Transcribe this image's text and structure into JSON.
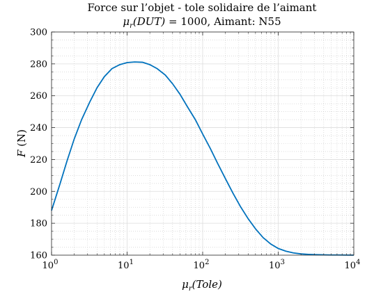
{
  "chart_data": {
    "type": "line",
    "title_line1": "Force sur l’objet - tole solidaire de l’aimant",
    "title_line2_var": "μ",
    "title_line2_sub": "r",
    "title_line2_arg": "(DUT)",
    "title_line2_rest": " = 1000, Aimant: N55",
    "xlabel_var": "μ",
    "xlabel_sub": "r",
    "xlabel_arg": "(Tole)",
    "ylabel_var": "F",
    "ylabel_unit": " (N)",
    "xscale": "log",
    "xlim": [
      1,
      10000
    ],
    "ylim": [
      160,
      300
    ],
    "grid": true,
    "minor_grid": true,
    "line_color": "#0072BD",
    "xticks": [
      {
        "value": 1,
        "base": "10",
        "exp": "0"
      },
      {
        "value": 10,
        "base": "10",
        "exp": "1"
      },
      {
        "value": 100,
        "base": "10",
        "exp": "2"
      },
      {
        "value": 1000,
        "base": "10",
        "exp": "3"
      },
      {
        "value": 10000,
        "base": "10",
        "exp": "4"
      }
    ],
    "yticks": [
      "160",
      "180",
      "200",
      "220",
      "240",
      "260",
      "280",
      "300"
    ],
    "series": [
      {
        "x": [
          1,
          1.3,
          1.6,
          2,
          2.5,
          3.2,
          4,
          5,
          6.3,
          8,
          10,
          12.6,
          16,
          20,
          25,
          32,
          40,
          50,
          63,
          80,
          100,
          126,
          158,
          200,
          251,
          316,
          398,
          501,
          631,
          794,
          1000,
          1259,
          1585,
          1995,
          2512,
          3162,
          3981,
          5012,
          6310,
          7943,
          10000
        ],
        "y": [
          188,
          205,
          219,
          233,
          245,
          256,
          265,
          272,
          277,
          279.5,
          280.8,
          281.2,
          281,
          279.5,
          277,
          273,
          267.5,
          261,
          253,
          245,
          236,
          227,
          217.5,
          208,
          199,
          190.5,
          183,
          176.5,
          171,
          167,
          164.2,
          162.5,
          161.4,
          160.8,
          160.5,
          160.3,
          160.2,
          160.1,
          160.1,
          160.05,
          160
        ]
      }
    ]
  }
}
